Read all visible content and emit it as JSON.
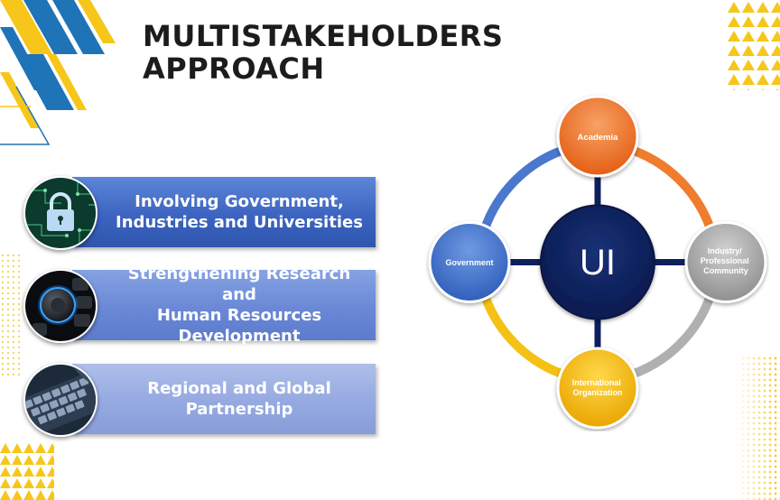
{
  "title_lines": [
    "MULTISTAKEHOLDERS",
    "APPROACH"
  ],
  "items": [
    {
      "lines": [
        "Involving Government,",
        "Industries and Universities"
      ],
      "image": "padlock-circuit-image"
    },
    {
      "lines": [
        "Strengthening Research and",
        "Human Resources Development"
      ],
      "image": "control-knob-image"
    },
    {
      "lines": [
        "Regional and Global",
        "Partnership"
      ],
      "image": "keyboard-image"
    }
  ],
  "diagram": {
    "center": "UI",
    "nodes": {
      "academia": {
        "lines": [
          "Academia"
        ],
        "color": "#ef6a22"
      },
      "industry": {
        "lines": [
          "Industry/",
          "Professional",
          "Community"
        ],
        "color": "#a6a6a6"
      },
      "international": {
        "lines": [
          "International",
          "Organization"
        ],
        "color": "#f2b300"
      },
      "government": {
        "lines": [
          "Government"
        ],
        "color": "#3f70c9"
      }
    },
    "center_color": "#0d1f5c",
    "arc_colors": {
      "academia_industry": "#f07c2e",
      "industry_international": "#b0b0b0",
      "international_government": "#f4c214",
      "government_academia": "#4a78cf"
    }
  },
  "colors": {
    "brand_blue": "#1f73b7",
    "brand_yellow": "#f6c71a",
    "title": "#1c1c1c"
  }
}
